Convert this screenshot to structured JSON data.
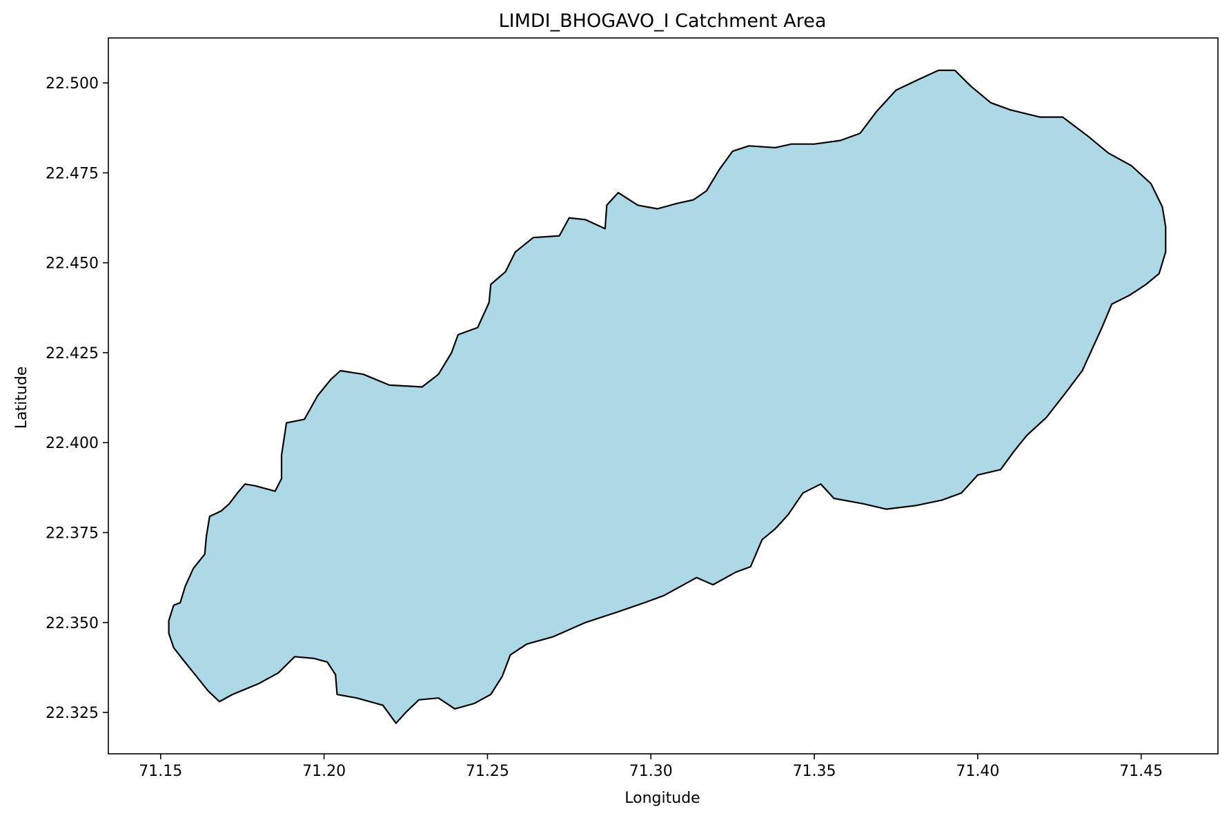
{
  "figure": {
    "title": "LIMDI_BHOGAVO_I Catchment Area",
    "xlabel": "Longitude",
    "ylabel": "Latitude"
  },
  "colors": {
    "fill": "#add8e6",
    "edge": "#000000",
    "background": "#ffffff",
    "axes": "#000000"
  },
  "chart_data": {
    "type": "map-polygon",
    "title": "LIMDI_BHOGAVO_I Catchment Area",
    "xlabel": "Longitude",
    "ylabel": "Latitude",
    "xlim": [
      71.134,
      71.4735
    ],
    "ylim": [
      22.3135,
      22.5125
    ],
    "xticks": [
      71.15,
      71.2,
      71.25,
      71.3,
      71.35,
      71.4,
      71.45
    ],
    "xtick_labels": [
      "71.15",
      "71.20",
      "71.25",
      "71.30",
      "71.35",
      "71.40",
      "71.45"
    ],
    "yticks": [
      22.325,
      22.35,
      22.375,
      22.4,
      22.425,
      22.45,
      22.475,
      22.5
    ],
    "ytick_labels": [
      "22.325",
      "22.350",
      "22.375",
      "22.400",
      "22.425",
      "22.450",
      "22.475",
      "22.500"
    ],
    "grid": false,
    "polygon": [
      [
        71.1525,
        22.3505
      ],
      [
        71.154,
        22.3548
      ],
      [
        71.156,
        22.3555
      ],
      [
        71.1575,
        22.36
      ],
      [
        71.16,
        22.365
      ],
      [
        71.1635,
        22.369
      ],
      [
        71.164,
        22.374
      ],
      [
        71.165,
        22.3795
      ],
      [
        71.1685,
        22.381
      ],
      [
        71.171,
        22.383
      ],
      [
        71.1735,
        22.386
      ],
      [
        71.1758,
        22.3885
      ],
      [
        71.179,
        22.388
      ],
      [
        71.185,
        22.3865
      ],
      [
        71.187,
        22.39
      ],
      [
        71.187,
        22.3965
      ],
      [
        71.1885,
        22.4055
      ],
      [
        71.194,
        22.4065
      ],
      [
        71.198,
        22.413
      ],
      [
        71.202,
        22.4175
      ],
      [
        71.205,
        22.42
      ],
      [
        71.212,
        22.419
      ],
      [
        71.22,
        22.416
      ],
      [
        71.23,
        22.4155
      ],
      [
        71.235,
        22.419
      ],
      [
        71.239,
        22.425
      ],
      [
        71.241,
        22.43
      ],
      [
        71.247,
        22.432
      ],
      [
        71.2505,
        22.439
      ],
      [
        71.251,
        22.444
      ],
      [
        71.2555,
        22.4475
      ],
      [
        71.2585,
        22.453
      ],
      [
        71.264,
        22.457
      ],
      [
        71.272,
        22.4575
      ],
      [
        71.275,
        22.4625
      ],
      [
        71.28,
        22.462
      ],
      [
        71.286,
        22.4595
      ],
      [
        71.2865,
        22.466
      ],
      [
        71.29,
        22.4695
      ],
      [
        71.296,
        22.466
      ],
      [
        71.302,
        22.465
      ],
      [
        71.308,
        22.4665
      ],
      [
        71.313,
        22.4675
      ],
      [
        71.317,
        22.47
      ],
      [
        71.321,
        22.476
      ],
      [
        71.325,
        22.481
      ],
      [
        71.33,
        22.4825
      ],
      [
        71.338,
        22.482
      ],
      [
        71.343,
        22.483
      ],
      [
        71.35,
        22.483
      ],
      [
        71.358,
        22.484
      ],
      [
        71.364,
        22.486
      ],
      [
        71.369,
        22.492
      ],
      [
        71.375,
        22.498
      ],
      [
        71.382,
        22.501
      ],
      [
        71.388,
        22.5035
      ],
      [
        71.393,
        22.5035
      ],
      [
        71.398,
        22.499
      ],
      [
        71.404,
        22.4945
      ],
      [
        71.41,
        22.4925
      ],
      [
        71.419,
        22.4905
      ],
      [
        71.426,
        22.4905
      ],
      [
        71.434,
        22.485
      ],
      [
        71.44,
        22.4805
      ],
      [
        71.447,
        22.477
      ],
      [
        71.453,
        22.472
      ],
      [
        71.4565,
        22.4655
      ],
      [
        71.4575,
        22.46
      ],
      [
        71.4575,
        22.453
      ],
      [
        71.4555,
        22.447
      ],
      [
        71.4515,
        22.444
      ],
      [
        71.4465,
        22.441
      ],
      [
        71.441,
        22.4385
      ],
      [
        71.438,
        22.432
      ],
      [
        71.435,
        22.426
      ],
      [
        71.432,
        22.42
      ],
      [
        71.427,
        22.414
      ],
      [
        71.421,
        22.407
      ],
      [
        71.415,
        22.402
      ],
      [
        71.411,
        22.3975
      ],
      [
        71.407,
        22.3925
      ],
      [
        71.4,
        22.391
      ],
      [
        71.395,
        22.386
      ],
      [
        71.389,
        22.384
      ],
      [
        71.381,
        22.3825
      ],
      [
        71.372,
        22.3815
      ],
      [
        71.365,
        22.383
      ],
      [
        71.356,
        22.3845
      ],
      [
        71.352,
        22.3885
      ],
      [
        71.3465,
        22.386
      ],
      [
        71.342,
        22.38
      ],
      [
        71.338,
        22.376
      ],
      [
        71.334,
        22.373
      ],
      [
        71.3305,
        22.3655
      ],
      [
        71.326,
        22.364
      ],
      [
        71.319,
        22.3605
      ],
      [
        71.314,
        22.3625
      ],
      [
        71.309,
        22.36
      ],
      [
        71.304,
        22.3575
      ],
      [
        71.298,
        22.3555
      ],
      [
        71.29,
        22.353
      ],
      [
        71.28,
        22.35
      ],
      [
        71.27,
        22.346
      ],
      [
        71.262,
        22.344
      ],
      [
        71.257,
        22.341
      ],
      [
        71.2545,
        22.335
      ],
      [
        71.251,
        22.33
      ],
      [
        71.246,
        22.3275
      ],
      [
        71.24,
        22.326
      ],
      [
        71.235,
        22.329
      ],
      [
        71.229,
        22.3285
      ],
      [
        71.225,
        22.325
      ],
      [
        71.222,
        22.322
      ],
      [
        71.218,
        22.327
      ],
      [
        71.21,
        22.329
      ],
      [
        71.204,
        22.33
      ],
      [
        71.2035,
        22.3355
      ],
      [
        71.201,
        22.339
      ],
      [
        71.197,
        22.34
      ],
      [
        71.191,
        22.3405
      ],
      [
        71.186,
        22.336
      ],
      [
        71.18,
        22.333
      ],
      [
        71.176,
        22.3315
      ],
      [
        71.172,
        22.33
      ],
      [
        71.168,
        22.328
      ],
      [
        71.1645,
        22.331
      ],
      [
        71.161,
        22.335
      ],
      [
        71.157,
        22.3395
      ],
      [
        71.154,
        22.343
      ],
      [
        71.1525,
        22.347
      ]
    ]
  }
}
